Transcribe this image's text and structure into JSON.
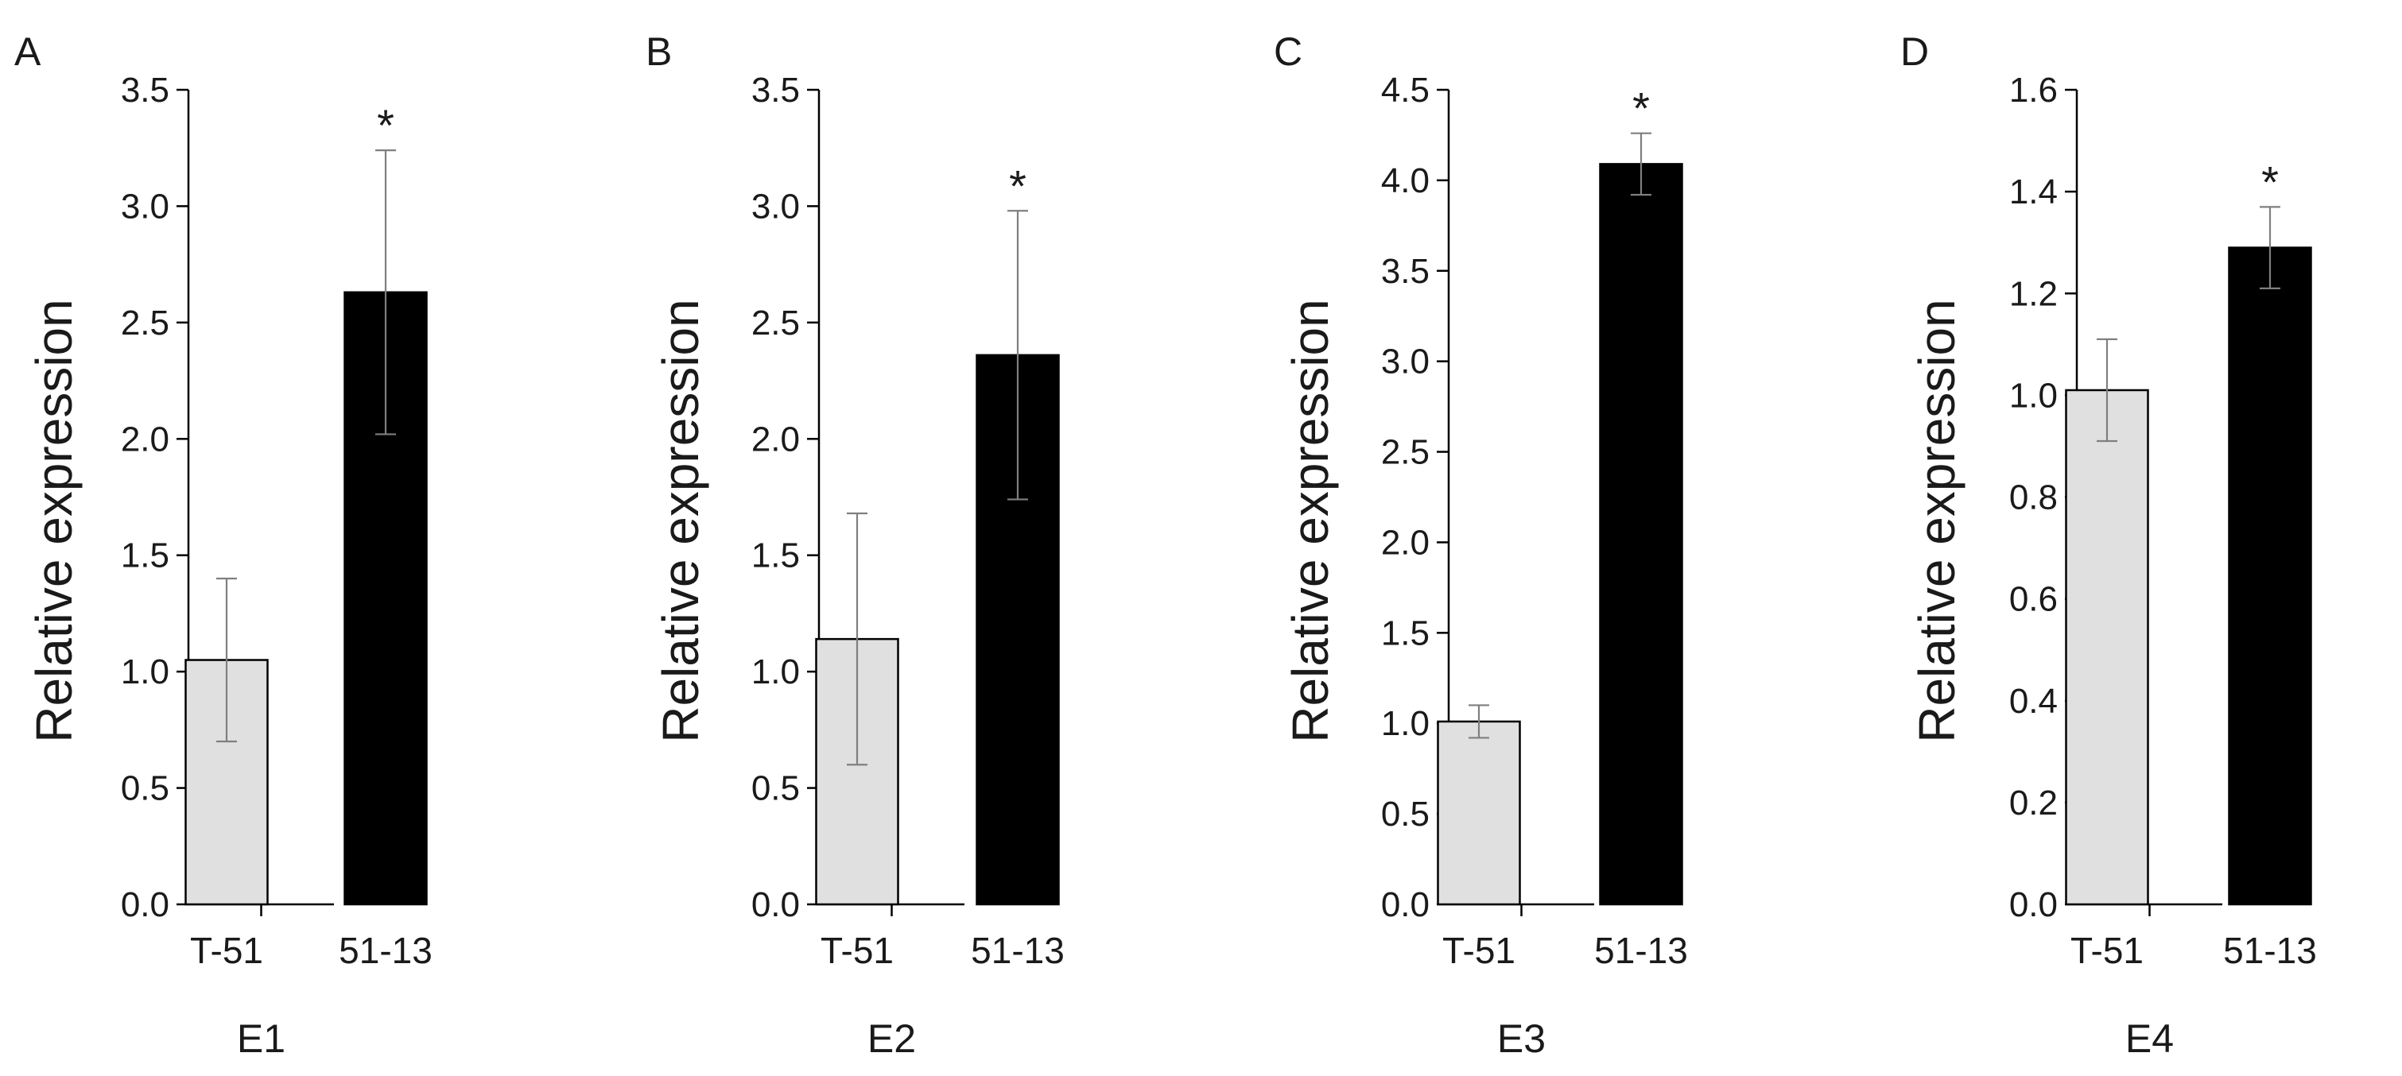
{
  "chart_data": [
    {
      "type": "bar",
      "panel": "A",
      "categories": [
        "T-51",
        "51-13"
      ],
      "values": [
        1.05,
        2.63
      ],
      "errors": [
        0.35,
        0.61
      ],
      "significance": [
        "",
        "*"
      ],
      "colors": [
        "#e0e0e0",
        "#000000"
      ],
      "ylabel": "Relative expression",
      "xlabel": "E1",
      "ylim": [
        0,
        3.5
      ],
      "yticks": [
        "0.0",
        "0.5",
        "1.0",
        "1.5",
        "2.0",
        "2.5",
        "3.0",
        "3.5"
      ],
      "grid": false
    },
    {
      "type": "bar",
      "panel": "B",
      "categories": [
        "T-51",
        "51-13"
      ],
      "values": [
        1.14,
        2.36
      ],
      "errors": [
        0.54,
        0.62
      ],
      "significance": [
        "",
        "*"
      ],
      "colors": [
        "#e0e0e0",
        "#000000"
      ],
      "ylabel": "Relative expression",
      "xlabel": "E2",
      "ylim": [
        0,
        3.5
      ],
      "yticks": [
        "0.0",
        "0.5",
        "1.0",
        "1.5",
        "2.0",
        "2.5",
        "3.0",
        "3.5"
      ],
      "grid": false
    },
    {
      "type": "bar",
      "panel": "C",
      "categories": [
        "T-51",
        "51-13"
      ],
      "values": [
        1.01,
        4.09
      ],
      "errors": [
        0.09,
        0.17
      ],
      "significance": [
        "",
        "*"
      ],
      "colors": [
        "#e0e0e0",
        "#000000"
      ],
      "ylabel": "Relative expression",
      "xlabel": "E3",
      "ylim": [
        0,
        4.5
      ],
      "yticks": [
        "0.0",
        "0.5",
        "1.0",
        "1.5",
        "2.0",
        "2.5",
        "3.0",
        "3.5",
        "4.0",
        "4.5"
      ],
      "grid": false
    },
    {
      "type": "bar",
      "panel": "D",
      "categories": [
        "T-51",
        "51-13"
      ],
      "values": [
        1.01,
        1.29
      ],
      "errors": [
        0.1,
        0.08
      ],
      "significance": [
        "",
        "*"
      ],
      "colors": [
        "#e0e0e0",
        "#000000"
      ],
      "ylabel": "Relative expression",
      "xlabel": "E4",
      "ylim": [
        0,
        1.6
      ],
      "yticks": [
        "0.0",
        "0.2",
        "0.4",
        "0.6",
        "0.8",
        "1.0",
        "1.2",
        "1.4",
        "1.6"
      ],
      "grid": false
    }
  ]
}
